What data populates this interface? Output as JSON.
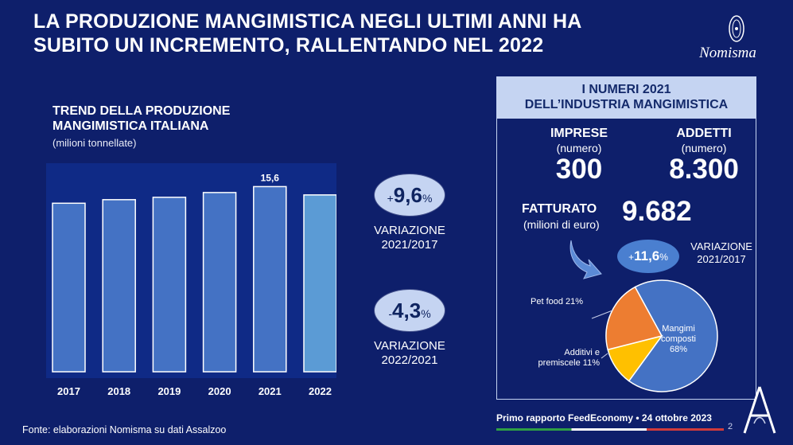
{
  "header": {
    "title": "LA PRODUZIONE MANGIMISTICA NEGLI ULTIMI ANNI HA SUBITO UN INCREMENTO, RALLENTANDO NEL 2022",
    "logo_text": "Nomisma"
  },
  "chart_data": {
    "type": "bar",
    "title": "TREND DELLA PRODUZIONE MANGIMISTICA ITALIANA",
    "subtitle": "(milioni tonnellate)",
    "categories": [
      "2017",
      "2018",
      "2019",
      "2020",
      "2021",
      "2022"
    ],
    "values": [
      14.2,
      14.5,
      14.7,
      15.1,
      15.6,
      14.9
    ],
    "data_labels": [
      "",
      "",
      "",
      "",
      "15,6",
      ""
    ],
    "ylim": [
      0,
      16.5
    ],
    "colors": [
      "#4472c4",
      "#4472c4",
      "#4472c4",
      "#4472c4",
      "#4472c4",
      "#5b9bd5"
    ]
  },
  "variations": [
    {
      "sign": "+",
      "value": "9,6",
      "unit": "%",
      "label_1": "VARIAZIONE",
      "label_2": "2021/2017"
    },
    {
      "sign": "-",
      "value": "4,3",
      "unit": "%",
      "label_1": "VARIAZIONE",
      "label_2": "2022/2021"
    }
  ],
  "panel": {
    "title_1": "I NUMERI 2021",
    "title_2": "DELL’INDUSTRIA MANGIMISTICA",
    "imprese": {
      "label": "IMPRESE",
      "unit": "(numero)",
      "value": "300"
    },
    "addetti": {
      "label": "ADDETTI",
      "unit": "(numero)",
      "value": "8.300"
    },
    "fatturato": {
      "label": "FATTURATO",
      "unit": "(milioni di euro)",
      "value": "9.682"
    },
    "variation": {
      "sign": "+",
      "value": "11,6",
      "unit": "%",
      "label_1": "VARIAZIONE",
      "label_2": "2021/2017"
    },
    "pie": {
      "type": "pie",
      "slices": [
        {
          "label": "Mangimi composti 68%",
          "value": 68,
          "color": "#4472c4"
        },
        {
          "label": "Additivi e premiscele 11%",
          "value": 11,
          "color": "#ffc000"
        },
        {
          "label": "Pet food 21%",
          "value": 21,
          "color": "#ed7d31"
        }
      ],
      "label_mangimi_1": "Mangimi",
      "label_mangimi_2": "composti",
      "label_mangimi_3": "68%",
      "label_additivi_1": "Additivi e",
      "label_additivi_2": "premiscele 11%",
      "label_pet": "Pet food 21%"
    }
  },
  "footer": {
    "source": "Fonte: elaborazioni Nomisma su dati Assalzoo",
    "report": "Primo rapporto FeedEconomy • 24 ottobre 2023",
    "page": "2"
  },
  "colors": {
    "background": "#0e1f6b",
    "badge": "#c5d4f2",
    "badge_blue": "#4a7fd0"
  }
}
